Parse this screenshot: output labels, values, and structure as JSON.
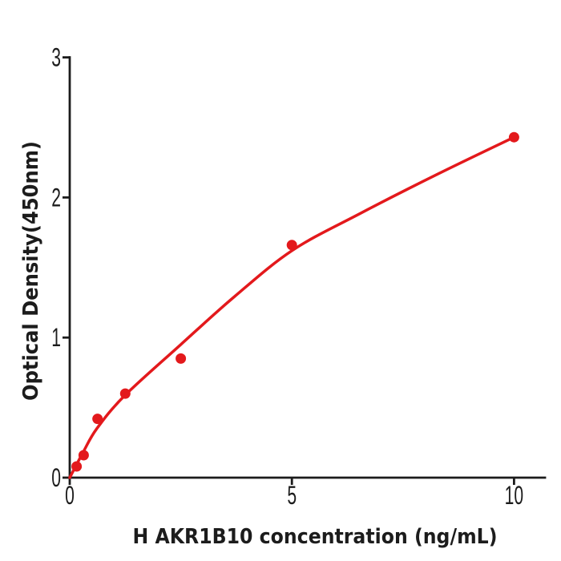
{
  "figure": {
    "background": "#ffffff",
    "axis_color": "#1c1c1c",
    "accent_red": "#e3191c"
  },
  "chart_data": {
    "type": "scatter",
    "title": "",
    "xlabel": "H  AKR1B10 concentration (ng/mL)",
    "ylabel": "Optical Density(450nm)",
    "xlim": [
      0,
      10.7
    ],
    "ylim": [
      0,
      3
    ],
    "xticks": [
      0,
      5,
      10
    ],
    "yticks": [
      0,
      1,
      2,
      3
    ],
    "grid": false,
    "legend": null,
    "series": [
      {
        "name": "standard-points",
        "type": "scatter",
        "color": "#e3191c",
        "marker_radius": 6.5,
        "x": [
          0.156,
          0.313,
          0.625,
          1.25,
          2.5,
          5,
          10
        ],
        "y": [
          0.08,
          0.16,
          0.42,
          0.6,
          0.85,
          1.66,
          2.43
        ]
      },
      {
        "name": "fitted-curve",
        "type": "line",
        "color": "#e3191c",
        "line_width": 3.5,
        "x": [
          0,
          0.3,
          0.61,
          1.25,
          2.5,
          3.7,
          5,
          6.5,
          8.3,
          10
        ],
        "y": [
          0,
          0.18,
          0.35,
          0.59,
          0.95,
          1.29,
          1.62,
          1.88,
          2.17,
          2.43
        ]
      }
    ]
  }
}
